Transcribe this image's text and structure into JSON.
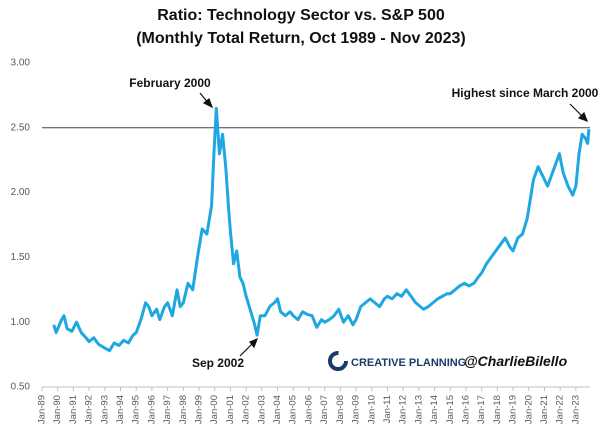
{
  "chart_data": {
    "type": "line",
    "title": "Ratio: Technology Sector vs. S&P 500",
    "subtitle": "(Monthly Total Return, Oct 1989 - Nov 2023)",
    "color": "#1ea7e1",
    "x": [
      1989.75,
      1989.9,
      1990.25,
      1990.4,
      1990.6,
      1990.9,
      1991.2,
      1991.5,
      1991.8,
      1992.0,
      1992.3,
      1992.6,
      1993.0,
      1993.3,
      1993.6,
      1993.9,
      1994.2,
      1994.5,
      1994.8,
      1995.0,
      1995.3,
      1995.6,
      1995.8,
      1996.0,
      1996.3,
      1996.5,
      1996.8,
      1997.0,
      1997.3,
      1997.6,
      1997.8,
      1998.0,
      1998.3,
      1998.6,
      1998.9,
      1999.2,
      1999.5,
      1999.8,
      1999.95,
      2000.1,
      2000.3,
      2000.5,
      2000.7,
      2000.9,
      2001.0,
      2001.2,
      2001.4,
      2001.6,
      2001.8,
      2002.0,
      2002.3,
      2002.5,
      2002.7,
      2002.9,
      2003.2,
      2003.5,
      2003.8,
      2004.0,
      2004.2,
      2004.5,
      2004.8,
      2005.0,
      2005.3,
      2005.6,
      2005.9,
      2006.2,
      2006.5,
      2006.8,
      2007.0,
      2007.3,
      2007.6,
      2007.9,
      2008.2,
      2008.5,
      2008.8,
      2009.0,
      2009.3,
      2009.6,
      2009.9,
      2010.2,
      2010.5,
      2010.8,
      2011.0,
      2011.3,
      2011.6,
      2011.9,
      2012.2,
      2012.5,
      2012.8,
      2013.0,
      2013.3,
      2013.6,
      2013.9,
      2014.2,
      2014.5,
      2014.8,
      2015.0,
      2015.3,
      2015.6,
      2015.9,
      2016.2,
      2016.5,
      2016.8,
      2017.0,
      2017.3,
      2017.6,
      2017.9,
      2018.2,
      2018.5,
      2018.8,
      2019.0,
      2019.3,
      2019.6,
      2019.9,
      2020.1,
      2020.3,
      2020.6,
      2020.8,
      2021.0,
      2021.2,
      2021.5,
      2021.8,
      2021.95,
      2022.2,
      2022.5,
      2022.8,
      2023.0,
      2023.2,
      2023.4,
      2023.6,
      2023.75,
      2023.83
    ],
    "values": [
      0.98,
      0.92,
      1.02,
      1.05,
      0.95,
      0.93,
      1.0,
      0.92,
      0.88,
      0.85,
      0.88,
      0.83,
      0.8,
      0.78,
      0.84,
      0.82,
      0.86,
      0.84,
      0.9,
      0.92,
      1.02,
      1.15,
      1.12,
      1.05,
      1.1,
      1.02,
      1.12,
      1.15,
      1.05,
      1.25,
      1.12,
      1.15,
      1.3,
      1.25,
      1.5,
      1.72,
      1.68,
      1.9,
      2.3,
      2.65,
      2.3,
      2.45,
      2.2,
      1.85,
      1.7,
      1.45,
      1.55,
      1.35,
      1.3,
      1.2,
      1.08,
      1.0,
      0.9,
      1.05,
      1.05,
      1.12,
      1.15,
      1.18,
      1.08,
      1.05,
      1.08,
      1.05,
      1.02,
      1.08,
      1.06,
      1.05,
      0.96,
      1.02,
      1.0,
      1.02,
      1.05,
      1.1,
      1.0,
      1.05,
      0.98,
      1.02,
      1.12,
      1.15,
      1.18,
      1.15,
      1.12,
      1.18,
      1.2,
      1.18,
      1.22,
      1.2,
      1.25,
      1.2,
      1.15,
      1.13,
      1.1,
      1.12,
      1.15,
      1.18,
      1.2,
      1.22,
      1.22,
      1.25,
      1.28,
      1.3,
      1.28,
      1.3,
      1.35,
      1.38,
      1.45,
      1.5,
      1.55,
      1.6,
      1.65,
      1.58,
      1.55,
      1.65,
      1.68,
      1.8,
      1.95,
      2.1,
      2.2,
      2.15,
      2.1,
      2.05,
      2.15,
      2.25,
      2.3,
      2.15,
      2.05,
      1.98,
      2.05,
      2.3,
      2.45,
      2.42,
      2.38,
      2.49
    ],
    "xlim": [
      1989,
      2023.9
    ],
    "xticks": [
      {
        "value": 1989,
        "label": "Jan-89"
      },
      {
        "value": 1990,
        "label": "Jan-90"
      },
      {
        "value": 1991,
        "label": "Jan-91"
      },
      {
        "value": 1992,
        "label": "Jan-92"
      },
      {
        "value": 1993,
        "label": "Jan-93"
      },
      {
        "value": 1994,
        "label": "Jan-94"
      },
      {
        "value": 1995,
        "label": "Jan-95"
      },
      {
        "value": 1996,
        "label": "Jan-96"
      },
      {
        "value": 1997,
        "label": "Jan-97"
      },
      {
        "value": 1998,
        "label": "Jan-98"
      },
      {
        "value": 1999,
        "label": "Jan-99"
      },
      {
        "value": 2000,
        "label": "Jan-00"
      },
      {
        "value": 2001,
        "label": "Jan-01"
      },
      {
        "value": 2002,
        "label": "Jan-02"
      },
      {
        "value": 2003,
        "label": "Jan-03"
      },
      {
        "value": 2004,
        "label": "Jan-04"
      },
      {
        "value": 2005,
        "label": "Jan-05"
      },
      {
        "value": 2006,
        "label": "Jan-06"
      },
      {
        "value": 2007,
        "label": "Jan-07"
      },
      {
        "value": 2008,
        "label": "Jan-08"
      },
      {
        "value": 2009,
        "label": "Jan-09"
      },
      {
        "value": 2010,
        "label": "Jan-10"
      },
      {
        "value": 2011,
        "label": "Jan-11"
      },
      {
        "value": 2012,
        "label": "Jan-12"
      },
      {
        "value": 2013,
        "label": "Jan-13"
      },
      {
        "value": 2014,
        "label": "Jan-14"
      },
      {
        "value": 2015,
        "label": "Jan-15"
      },
      {
        "value": 2016,
        "label": "Jan-16"
      },
      {
        "value": 2017,
        "label": "Jan-17"
      },
      {
        "value": 2018,
        "label": "Jan-18"
      },
      {
        "value": 2019,
        "label": "Jan-19"
      },
      {
        "value": 2020,
        "label": "Jan-20"
      },
      {
        "value": 2021,
        "label": "Jan-21"
      },
      {
        "value": 2022,
        "label": "Jan-22"
      },
      {
        "value": 2023,
        "label": "Jan-23"
      }
    ],
    "ylim": [
      0.5,
      3.0
    ],
    "yticks": [
      {
        "value": 0.5,
        "label": "0.50"
      },
      {
        "value": 1.0,
        "label": "1.00"
      },
      {
        "value": 1.5,
        "label": "1.50"
      },
      {
        "value": 2.0,
        "label": "2.00"
      },
      {
        "value": 2.5,
        "label": "2.50"
      },
      {
        "value": 3.0,
        "label": "3.00"
      }
    ],
    "hline": 2.5,
    "grid": false,
    "annotations": [
      "February 2000",
      "Sep 2002",
      "Highest since March 2000"
    ],
    "brand": "CREATIVE PLANNING",
    "handle": "@CharlieBilello"
  }
}
